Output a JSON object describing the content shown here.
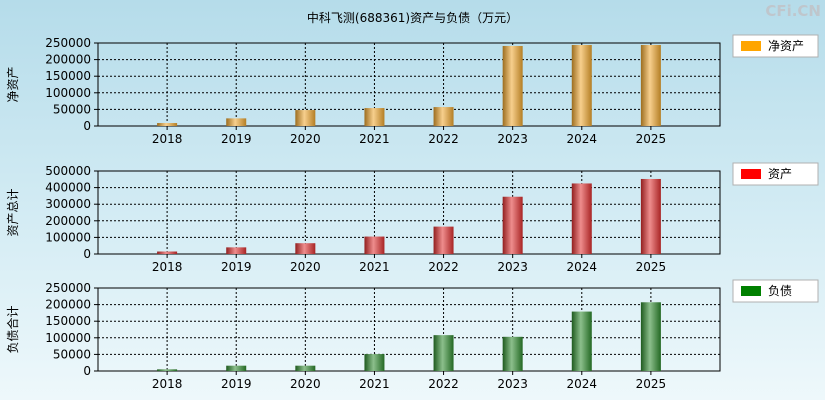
{
  "title": "中科飞测(688361)资产与负债（万元）",
  "watermark": "CFi.CN",
  "chart_data": [
    {
      "type": "bar",
      "ylabel": "净资产",
      "legend": "净资产",
      "legend_position": "right",
      "categories": [
        "2018",
        "2019",
        "2020",
        "2021",
        "2022",
        "2023",
        "2024",
        "2025"
      ],
      "values": [
        9000,
        23000,
        48000,
        54000,
        57000,
        241000,
        244000,
        244000
      ],
      "ylim": [
        0,
        250000
      ],
      "yticks": [
        "0",
        "50000",
        "100000",
        "150000",
        "200000",
        "250000"
      ],
      "grid": true,
      "color": "#f0a830",
      "legend_color": "#ffa500"
    },
    {
      "type": "bar",
      "ylabel": "资产总计",
      "legend": "资产",
      "legend_position": "right",
      "categories": [
        "2018",
        "2019",
        "2020",
        "2021",
        "2022",
        "2023",
        "2024",
        "2025"
      ],
      "values": [
        15000,
        40000,
        65000,
        105000,
        165000,
        345000,
        425000,
        452000
      ],
      "ylim": [
        0,
        500000
      ],
      "yticks": [
        "0",
        "100000",
        "200000",
        "300000",
        "400000",
        "500000"
      ],
      "grid": true,
      "color": "#e03030",
      "legend_color": "#ff0000"
    },
    {
      "type": "bar",
      "ylabel": "负债合计",
      "legend": "负债",
      "legend_position": "right",
      "categories": [
        "2018",
        "2019",
        "2020",
        "2021",
        "2022",
        "2023",
        "2024",
        "2025"
      ],
      "values": [
        5000,
        16000,
        16000,
        51000,
        108000,
        103000,
        179000,
        207000
      ],
      "ylim": [
        0,
        250000
      ],
      "yticks": [
        "0",
        "50000",
        "100000",
        "150000",
        "200000",
        "250000"
      ],
      "grid": true,
      "color": "#2e8b2e",
      "legend_color": "#008000"
    }
  ]
}
